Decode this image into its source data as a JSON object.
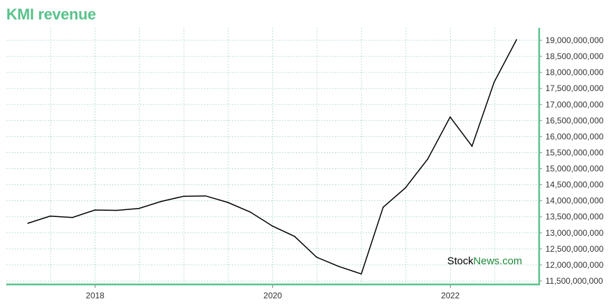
{
  "colors": {
    "brand": "#58c28b",
    "grid": "#a8d8c4",
    "line": "#000000",
    "watermark_dark": "#000000",
    "watermark_green": "#1f8a3a"
  },
  "chart_data": {
    "type": "line",
    "title": "KMI revenue",
    "xlabel": "",
    "ylabel": "",
    "x_ticks": [
      "2018",
      "2020",
      "2022"
    ],
    "y_ticks": [
      "11,500,000,000",
      "12,000,000,000",
      "12,500,000,000",
      "13,000,000,000",
      "13,500,000,000",
      "14,000,000,000",
      "14,500,000,000",
      "15,000,000,000",
      "15,500,000,000",
      "16,000,000,000",
      "16,500,000,000",
      "17,000,000,000",
      "17,500,000,000",
      "18,000,000,000",
      "18,500,000,000",
      "19,000,000,000"
    ],
    "ylim": [
      11500000000,
      19000000000
    ],
    "xlim": [
      2017.0,
      2023.0
    ],
    "grid": true,
    "y_axis_position": "right",
    "series": [
      {
        "x": [
          "2017-03-31",
          "2017-06-30",
          "2017-09-30",
          "2017-12-31",
          "2018-03-31",
          "2018-06-30",
          "2018-09-30",
          "2018-12-31",
          "2019-03-31",
          "2019-06-30",
          "2019-09-30",
          "2019-12-31",
          "2020-03-31",
          "2020-06-30",
          "2020-09-30",
          "2020-12-31",
          "2021-03-31",
          "2021-06-30",
          "2021-09-30",
          "2021-12-31",
          "2022-03-31",
          "2022-06-30",
          "2022-09-30"
        ],
        "values": [
          13300000000,
          13520000000,
          13480000000,
          13710000000,
          13700000000,
          13760000000,
          13980000000,
          14140000000,
          14150000000,
          13950000000,
          13650000000,
          13210000000,
          12890000000,
          12240000000,
          11950000000,
          11720000000,
          13800000000,
          14400000000,
          15300000000,
          16610000000,
          15700000000,
          17700000000,
          19020000000
        ]
      }
    ]
  },
  "watermark": {
    "part1": "Stock",
    "part2": "News",
    "part3": ".com"
  }
}
